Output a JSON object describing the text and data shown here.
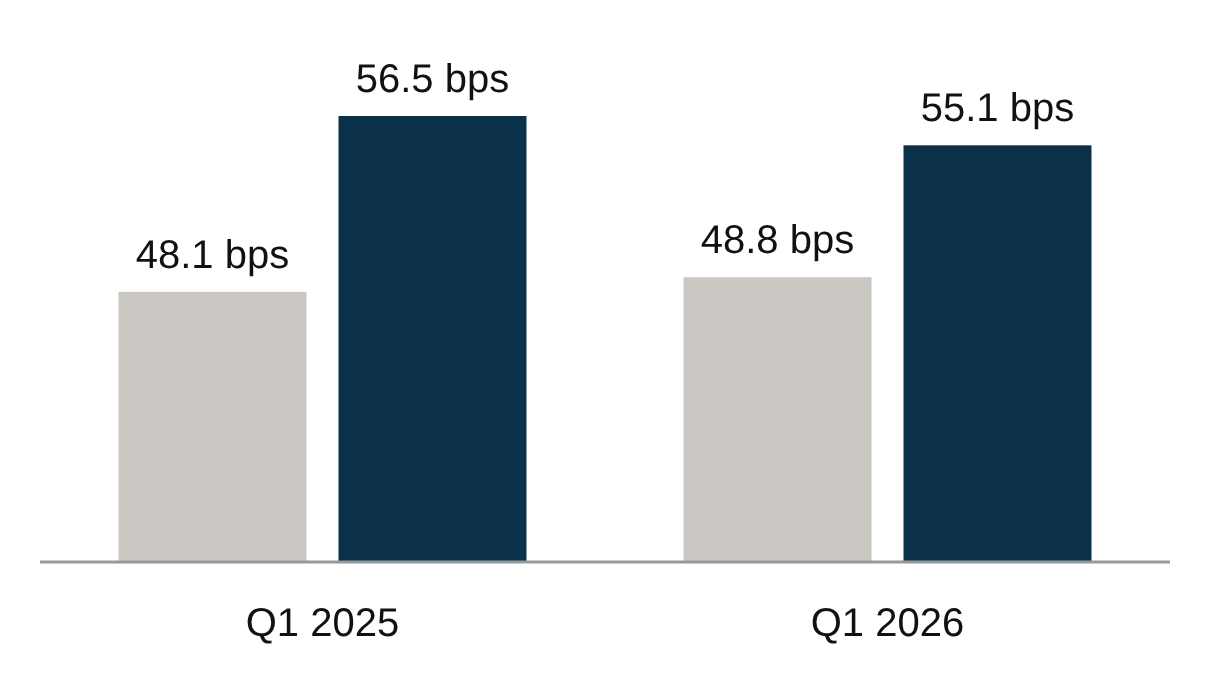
{
  "chart_data": {
    "type": "bar",
    "categories": [
      "Q1 2025",
      "Q1 2026"
    ],
    "ylim": [
      35.2,
      56.5
    ],
    "data_labels": true,
    "series": [
      {
        "color": "#cbc8c3",
        "values": [
          48.1,
          48.8
        ],
        "value_labels": [
          "48.1 bps",
          "48.8 bps"
        ]
      },
      {
        "color": "#0b3049",
        "values": [
          56.5,
          55.1
        ],
        "value_labels": [
          "56.5 bps",
          "55.1 bps"
        ]
      }
    ]
  }
}
